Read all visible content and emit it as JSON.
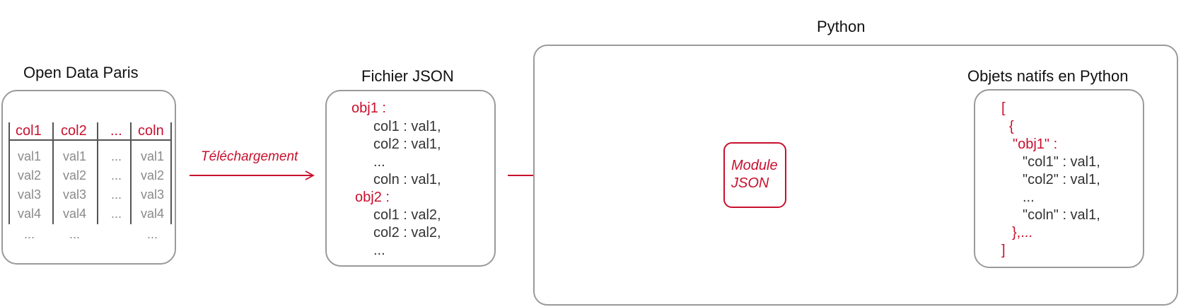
{
  "open_data": {
    "title": "Open Data Paris",
    "headers": [
      "col1",
      "col2",
      "...",
      "coln"
    ],
    "rows": [
      [
        "val1",
        "val1",
        "...",
        "val1"
      ],
      [
        "val2",
        "val2",
        "...",
        "val2"
      ],
      [
        "val3",
        "val3",
        "...",
        "val3"
      ],
      [
        "val4",
        "val4",
        "...",
        "val4"
      ],
      [
        "...",
        "...",
        "",
        "..."
      ]
    ]
  },
  "arrow1": {
    "label": "Téléchargement"
  },
  "json_file": {
    "title": "Fichier JSON",
    "obj1": "obj1 :",
    "obj1_lines": [
      "col1 : val1,",
      "col2 : val1,",
      "...",
      "coln : val1,"
    ],
    "obj2": "obj2 :",
    "obj2_lines": [
      "col1 : val2,",
      "col2 : val2,",
      "..."
    ]
  },
  "python": {
    "title": "Python",
    "module": {
      "line1": "Module",
      "line2": "JSON"
    },
    "native": {
      "title": "Objets natifs en Python",
      "open_bracket": "[",
      "open_brace": "{",
      "obj1": "\"obj1\" :",
      "lines": [
        "\"col1\" : val1,",
        "\"col2\" : val1,",
        "...",
        "\"coln\" : val1,"
      ],
      "close_brace": "},...",
      "close_bracket": "]"
    }
  },
  "colors": {
    "accent": "#c8102e",
    "border": "#9a9a9a",
    "text": "#333333"
  }
}
